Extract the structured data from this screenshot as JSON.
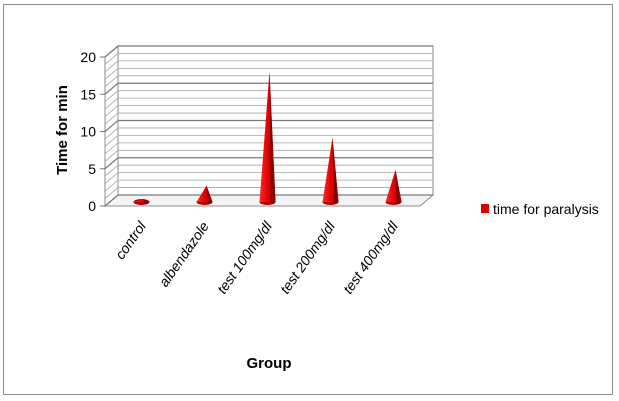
{
  "chart_data": {
    "type": "bar",
    "style": "3d-cone",
    "categories": [
      "control",
      "albendazole",
      "test 100mg/dl",
      "test 200mg/dl",
      "test 400mg/dl"
    ],
    "series": [
      {
        "name": "time for paralysis",
        "values": [
          0.4,
          2.2,
          17.5,
          8.6,
          4.3
        ],
        "color": "#e00000"
      }
    ],
    "xlabel": "Group",
    "ylabel": "Time for min",
    "ylim": [
      0,
      20
    ],
    "yticks": [
      0,
      5,
      10,
      15,
      20
    ],
    "grid": true,
    "legend_position": "right"
  }
}
